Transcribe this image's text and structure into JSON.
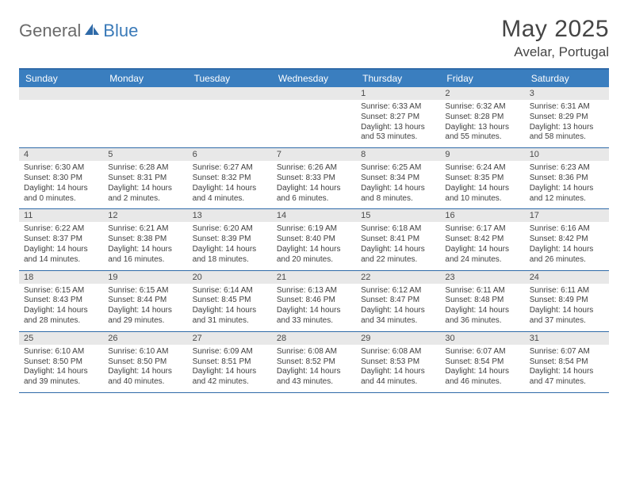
{
  "brand": {
    "general": "General",
    "blue": "Blue"
  },
  "title": {
    "month": "May 2025",
    "location": "Avelar, Portugal"
  },
  "colors": {
    "header_bar": "#3a7ebf",
    "rule": "#2f6aa8",
    "daynum_bg": "#e8e8e8",
    "text": "#3f3f3f",
    "title_text": "#454545"
  },
  "dow": [
    "Sunday",
    "Monday",
    "Tuesday",
    "Wednesday",
    "Thursday",
    "Friday",
    "Saturday"
  ],
  "weeks": [
    [
      {
        "n": "",
        "blank": true
      },
      {
        "n": "",
        "blank": true
      },
      {
        "n": "",
        "blank": true
      },
      {
        "n": "",
        "blank": true
      },
      {
        "n": "1",
        "sr": "Sunrise: 6:33 AM",
        "ss": "Sunset: 8:27 PM",
        "dl": "Daylight: 13 hours and 53 minutes."
      },
      {
        "n": "2",
        "sr": "Sunrise: 6:32 AM",
        "ss": "Sunset: 8:28 PM",
        "dl": "Daylight: 13 hours and 55 minutes."
      },
      {
        "n": "3",
        "sr": "Sunrise: 6:31 AM",
        "ss": "Sunset: 8:29 PM",
        "dl": "Daylight: 13 hours and 58 minutes."
      }
    ],
    [
      {
        "n": "4",
        "sr": "Sunrise: 6:30 AM",
        "ss": "Sunset: 8:30 PM",
        "dl": "Daylight: 14 hours and 0 minutes."
      },
      {
        "n": "5",
        "sr": "Sunrise: 6:28 AM",
        "ss": "Sunset: 8:31 PM",
        "dl": "Daylight: 14 hours and 2 minutes."
      },
      {
        "n": "6",
        "sr": "Sunrise: 6:27 AM",
        "ss": "Sunset: 8:32 PM",
        "dl": "Daylight: 14 hours and 4 minutes."
      },
      {
        "n": "7",
        "sr": "Sunrise: 6:26 AM",
        "ss": "Sunset: 8:33 PM",
        "dl": "Daylight: 14 hours and 6 minutes."
      },
      {
        "n": "8",
        "sr": "Sunrise: 6:25 AM",
        "ss": "Sunset: 8:34 PM",
        "dl": "Daylight: 14 hours and 8 minutes."
      },
      {
        "n": "9",
        "sr": "Sunrise: 6:24 AM",
        "ss": "Sunset: 8:35 PM",
        "dl": "Daylight: 14 hours and 10 minutes."
      },
      {
        "n": "10",
        "sr": "Sunrise: 6:23 AM",
        "ss": "Sunset: 8:36 PM",
        "dl": "Daylight: 14 hours and 12 minutes."
      }
    ],
    [
      {
        "n": "11",
        "sr": "Sunrise: 6:22 AM",
        "ss": "Sunset: 8:37 PM",
        "dl": "Daylight: 14 hours and 14 minutes."
      },
      {
        "n": "12",
        "sr": "Sunrise: 6:21 AM",
        "ss": "Sunset: 8:38 PM",
        "dl": "Daylight: 14 hours and 16 minutes."
      },
      {
        "n": "13",
        "sr": "Sunrise: 6:20 AM",
        "ss": "Sunset: 8:39 PM",
        "dl": "Daylight: 14 hours and 18 minutes."
      },
      {
        "n": "14",
        "sr": "Sunrise: 6:19 AM",
        "ss": "Sunset: 8:40 PM",
        "dl": "Daylight: 14 hours and 20 minutes."
      },
      {
        "n": "15",
        "sr": "Sunrise: 6:18 AM",
        "ss": "Sunset: 8:41 PM",
        "dl": "Daylight: 14 hours and 22 minutes."
      },
      {
        "n": "16",
        "sr": "Sunrise: 6:17 AM",
        "ss": "Sunset: 8:42 PM",
        "dl": "Daylight: 14 hours and 24 minutes."
      },
      {
        "n": "17",
        "sr": "Sunrise: 6:16 AM",
        "ss": "Sunset: 8:42 PM",
        "dl": "Daylight: 14 hours and 26 minutes."
      }
    ],
    [
      {
        "n": "18",
        "sr": "Sunrise: 6:15 AM",
        "ss": "Sunset: 8:43 PM",
        "dl": "Daylight: 14 hours and 28 minutes."
      },
      {
        "n": "19",
        "sr": "Sunrise: 6:15 AM",
        "ss": "Sunset: 8:44 PM",
        "dl": "Daylight: 14 hours and 29 minutes."
      },
      {
        "n": "20",
        "sr": "Sunrise: 6:14 AM",
        "ss": "Sunset: 8:45 PM",
        "dl": "Daylight: 14 hours and 31 minutes."
      },
      {
        "n": "21",
        "sr": "Sunrise: 6:13 AM",
        "ss": "Sunset: 8:46 PM",
        "dl": "Daylight: 14 hours and 33 minutes."
      },
      {
        "n": "22",
        "sr": "Sunrise: 6:12 AM",
        "ss": "Sunset: 8:47 PM",
        "dl": "Daylight: 14 hours and 34 minutes."
      },
      {
        "n": "23",
        "sr": "Sunrise: 6:11 AM",
        "ss": "Sunset: 8:48 PM",
        "dl": "Daylight: 14 hours and 36 minutes."
      },
      {
        "n": "24",
        "sr": "Sunrise: 6:11 AM",
        "ss": "Sunset: 8:49 PM",
        "dl": "Daylight: 14 hours and 37 minutes."
      }
    ],
    [
      {
        "n": "25",
        "sr": "Sunrise: 6:10 AM",
        "ss": "Sunset: 8:50 PM",
        "dl": "Daylight: 14 hours and 39 minutes."
      },
      {
        "n": "26",
        "sr": "Sunrise: 6:10 AM",
        "ss": "Sunset: 8:50 PM",
        "dl": "Daylight: 14 hours and 40 minutes."
      },
      {
        "n": "27",
        "sr": "Sunrise: 6:09 AM",
        "ss": "Sunset: 8:51 PM",
        "dl": "Daylight: 14 hours and 42 minutes."
      },
      {
        "n": "28",
        "sr": "Sunrise: 6:08 AM",
        "ss": "Sunset: 8:52 PM",
        "dl": "Daylight: 14 hours and 43 minutes."
      },
      {
        "n": "29",
        "sr": "Sunrise: 6:08 AM",
        "ss": "Sunset: 8:53 PM",
        "dl": "Daylight: 14 hours and 44 minutes."
      },
      {
        "n": "30",
        "sr": "Sunrise: 6:07 AM",
        "ss": "Sunset: 8:54 PM",
        "dl": "Daylight: 14 hours and 46 minutes."
      },
      {
        "n": "31",
        "sr": "Sunrise: 6:07 AM",
        "ss": "Sunset: 8:54 PM",
        "dl": "Daylight: 14 hours and 47 minutes."
      }
    ]
  ]
}
